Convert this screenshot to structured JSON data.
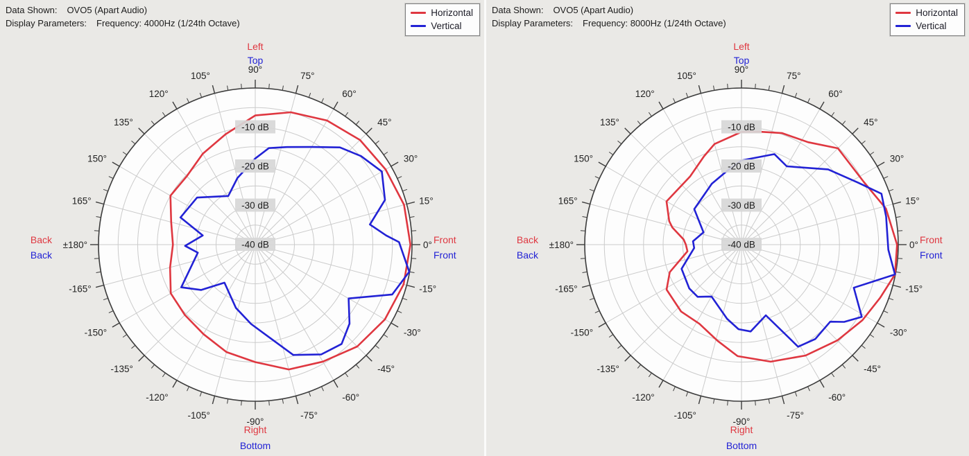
{
  "panels": [
    {
      "id": "4000hz",
      "header": {
        "data_shown_label": "Data Shown:",
        "data_shown_value": "OVO5 (Apart Audio)",
        "display_params_label": "Display Parameters:",
        "display_params_value": "Frequency: 4000Hz (1/24th Octave)"
      },
      "legend": {
        "items": [
          {
            "label": "Horizontal",
            "color": "#df3740"
          },
          {
            "label": "Vertical",
            "color": "#2222d5"
          }
        ]
      }
    },
    {
      "id": "8000hz",
      "header": {
        "data_shown_label": "Data Shown:",
        "data_shown_value": "OVO5 (Apart Audio)",
        "display_params_label": "Display Parameters:",
        "display_params_value": "Frequency: 8000Hz (1/24th Octave)"
      },
      "legend": {
        "items": [
          {
            "label": "Horizontal",
            "color": "#df3740"
          },
          {
            "label": "Vertical",
            "color": "#2222d5"
          }
        ]
      }
    }
  ],
  "polar_axis": {
    "db_min": -40,
    "db_max": 0,
    "db_circle_step": 5,
    "db_ring_labels": [
      {
        "db": -10,
        "text": "-10 dB"
      },
      {
        "db": -20,
        "text": "-20 dB"
      },
      {
        "db": -30,
        "text": "-30 dB"
      },
      {
        "db": -40,
        "text": "-40 dB"
      }
    ],
    "angle_labels": [
      {
        "angle": 90,
        "text": "90°"
      },
      {
        "angle": 75,
        "text": "75°"
      },
      {
        "angle": 60,
        "text": "60°"
      },
      {
        "angle": 45,
        "text": "45°"
      },
      {
        "angle": 30,
        "text": "30°"
      },
      {
        "angle": 15,
        "text": "15°"
      },
      {
        "angle": 0,
        "text": "0°"
      },
      {
        "angle": -15,
        "text": "-15°"
      },
      {
        "angle": -30,
        "text": "-30°"
      },
      {
        "angle": -45,
        "text": "-45°"
      },
      {
        "angle": -60,
        "text": "-60°"
      },
      {
        "angle": -75,
        "text": "-75°"
      },
      {
        "angle": -90,
        "text": "-90°"
      },
      {
        "angle": -105,
        "text": "-105°"
      },
      {
        "angle": -120,
        "text": "-120°"
      },
      {
        "angle": -135,
        "text": "-135°"
      },
      {
        "angle": -150,
        "text": "-150°"
      },
      {
        "angle": -165,
        "text": "-165°"
      },
      {
        "angle": 180,
        "text": "±180°"
      },
      {
        "angle": 165,
        "text": "165°"
      },
      {
        "angle": 150,
        "text": "150°"
      },
      {
        "angle": 135,
        "text": "135°"
      },
      {
        "angle": 120,
        "text": "120°"
      },
      {
        "angle": 105,
        "text": "105°"
      }
    ],
    "direction_labels": {
      "top": [
        {
          "text": "Left",
          "color": "#df3740"
        },
        {
          "text": "Top",
          "color": "#2222d5"
        }
      ],
      "bottom": [
        {
          "text": "Right",
          "color": "#df3740"
        },
        {
          "text": "Bottom",
          "color": "#2222d5"
        }
      ],
      "left": [
        {
          "text": "Back",
          "color": "#df3740"
        },
        {
          "text": "Back",
          "color": "#2222d5"
        }
      ],
      "right": [
        {
          "text": "Front",
          "color": "#df3740"
        },
        {
          "text": "Front",
          "color": "#2222d5"
        }
      ]
    },
    "colors": {
      "grid": "#cbcbcb",
      "ring": "#3c3c3c",
      "label_bg": "#d7d7d7",
      "label_text": "#1e1e1e",
      "circle_fill": "#fdfdfd"
    }
  },
  "chart_data": [
    {
      "type": "line",
      "layout": "polar",
      "title": "OVO5 (Apart Audio) — 4000Hz (1/24th Octave)",
      "angle_unit": "degrees",
      "radial_unit": "dB",
      "radial_range": [
        -40,
        0
      ],
      "legend_position": "top-right",
      "grid": true,
      "series": [
        {
          "name": "Horizontal",
          "color": "#df3740",
          "points": [
            [
              -180,
              -19
            ],
            [
              -165,
              -17.5
            ],
            [
              -150,
              -15.1
            ],
            [
              -135,
              -14.6
            ],
            [
              -120,
              -13.6
            ],
            [
              -105,
              -11.6
            ],
            [
              -90,
              -10
            ],
            [
              -75,
              -7
            ],
            [
              -60,
              -5.5
            ],
            [
              -45,
              -3.2
            ],
            [
              -30,
              -1.8
            ],
            [
              -15,
              -0.8
            ],
            [
              0,
              -0.4
            ],
            [
              15,
              -0.7
            ],
            [
              30,
              -1.6
            ],
            [
              45,
              -2.2
            ],
            [
              60,
              -3.4
            ],
            [
              75,
              -5
            ],
            [
              90,
              -7
            ],
            [
              105,
              -10.8
            ],
            [
              120,
              -13.2
            ],
            [
              135,
              -15.3
            ],
            [
              150,
              -15
            ],
            [
              165,
              -17.8
            ],
            [
              180,
              -19
            ]
          ]
        },
        {
          "name": "Vertical",
          "color": "#2222d5",
          "points": [
            [
              -179,
              -22.1
            ],
            [
              -172,
              -25.2
            ],
            [
              -150,
              -18.2
            ],
            [
              -140,
              -22
            ],
            [
              -129,
              -27.5
            ],
            [
              -107,
              -23.1
            ],
            [
              -93,
              -19.7
            ],
            [
              -71,
              -10.2
            ],
            [
              -59,
              -7.3
            ],
            [
              -49,
              -6.4
            ],
            [
              -40,
              -8.6
            ],
            [
              -30,
              -12.5
            ],
            [
              -20,
              -2.8
            ],
            [
              -10,
              -0.1
            ],
            [
              1,
              -3.3
            ],
            [
              4,
              -6.5
            ],
            [
              10,
              -10.3
            ],
            [
              19,
              -5
            ],
            [
              30,
              -2.7
            ],
            [
              40,
              -4.8
            ],
            [
              49,
              -7.1
            ],
            [
              60,
              -11.2
            ],
            [
              72,
              -13.8
            ],
            [
              82,
              -15.1
            ],
            [
              90,
              -18
            ],
            [
              105,
              -22.4
            ],
            [
              119,
              -25.8
            ],
            [
              141,
              -20.9
            ],
            [
              160,
              -19.7
            ],
            [
              170,
              -26.4
            ],
            [
              181,
              -22.1
            ]
          ]
        }
      ]
    },
    {
      "type": "line",
      "layout": "polar",
      "title": "OVO5 (Apart Audio) — 8000Hz (1/24th Octave)",
      "angle_unit": "degrees",
      "radial_unit": "dB",
      "radial_range": [
        -40,
        0
      ],
      "legend_position": "top-right",
      "grid": true,
      "series": [
        {
          "name": "Horizontal",
          "color": "#df3740",
          "points": [
            [
              -180,
              -25.8
            ],
            [
              -173,
              -26.1
            ],
            [
              -159,
              -20.4
            ],
            [
              -149,
              -17.7
            ],
            [
              -132,
              -17
            ],
            [
              -118,
              -17.1
            ],
            [
              -104,
              -14.7
            ],
            [
              -92,
              -11.5
            ],
            [
              -76,
              -9.2
            ],
            [
              -60,
              -7.3
            ],
            [
              -45,
              -5.4
            ],
            [
              -32,
              -3.6
            ],
            [
              -21,
              -2.1
            ],
            [
              -11,
              -0.1
            ],
            [
              0,
              -0.3
            ],
            [
              14,
              -2
            ],
            [
              27,
              -4.9
            ],
            [
              45,
              -5.2
            ],
            [
              57,
              -8.8
            ],
            [
              70,
              -9.7
            ],
            [
              81,
              -10.8
            ],
            [
              90,
              -11.2
            ],
            [
              105,
              -13.4
            ],
            [
              113,
              -15.5
            ],
            [
              127,
              -18.2
            ],
            [
              150,
              -17.9
            ],
            [
              162,
              -20.6
            ],
            [
              166,
              -21.8
            ],
            [
              175,
              -25.2
            ],
            [
              180,
              -25.8
            ]
          ]
        },
        {
          "name": "Vertical",
          "color": "#2222d5",
          "points": [
            [
              -176,
              -27.9
            ],
            [
              -158,
              -23.5
            ],
            [
              -140,
              -22.6
            ],
            [
              -130,
              -22.6
            ],
            [
              -120,
              -24.7
            ],
            [
              -101,
              -20.7
            ],
            [
              -92,
              -18.4
            ],
            [
              -84,
              -17.7
            ],
            [
              -71,
              -20.9
            ],
            [
              -61,
              -10.2
            ],
            [
              -52,
              -9.4
            ],
            [
              -41,
              -10
            ],
            [
              -37,
              -7.2
            ],
            [
              -31,
              -4.2
            ],
            [
              -21,
              -9.3
            ],
            [
              -11,
              -0.1
            ],
            [
              -2,
              -2.5
            ],
            [
              11,
              -2.4
            ],
            [
              20,
              -2
            ],
            [
              28,
              -6.3
            ],
            [
              41,
              -10.7
            ],
            [
              60,
              -16.9
            ],
            [
              70,
              -15.4
            ],
            [
              90,
              -18.5
            ],
            [
              101,
              -20.8
            ],
            [
              116,
              -22.7
            ],
            [
              143,
              -24.9
            ],
            [
              162,
              -29.8
            ],
            [
              176,
              -27.6
            ],
            [
              184,
              -27.9
            ]
          ]
        }
      ]
    }
  ]
}
